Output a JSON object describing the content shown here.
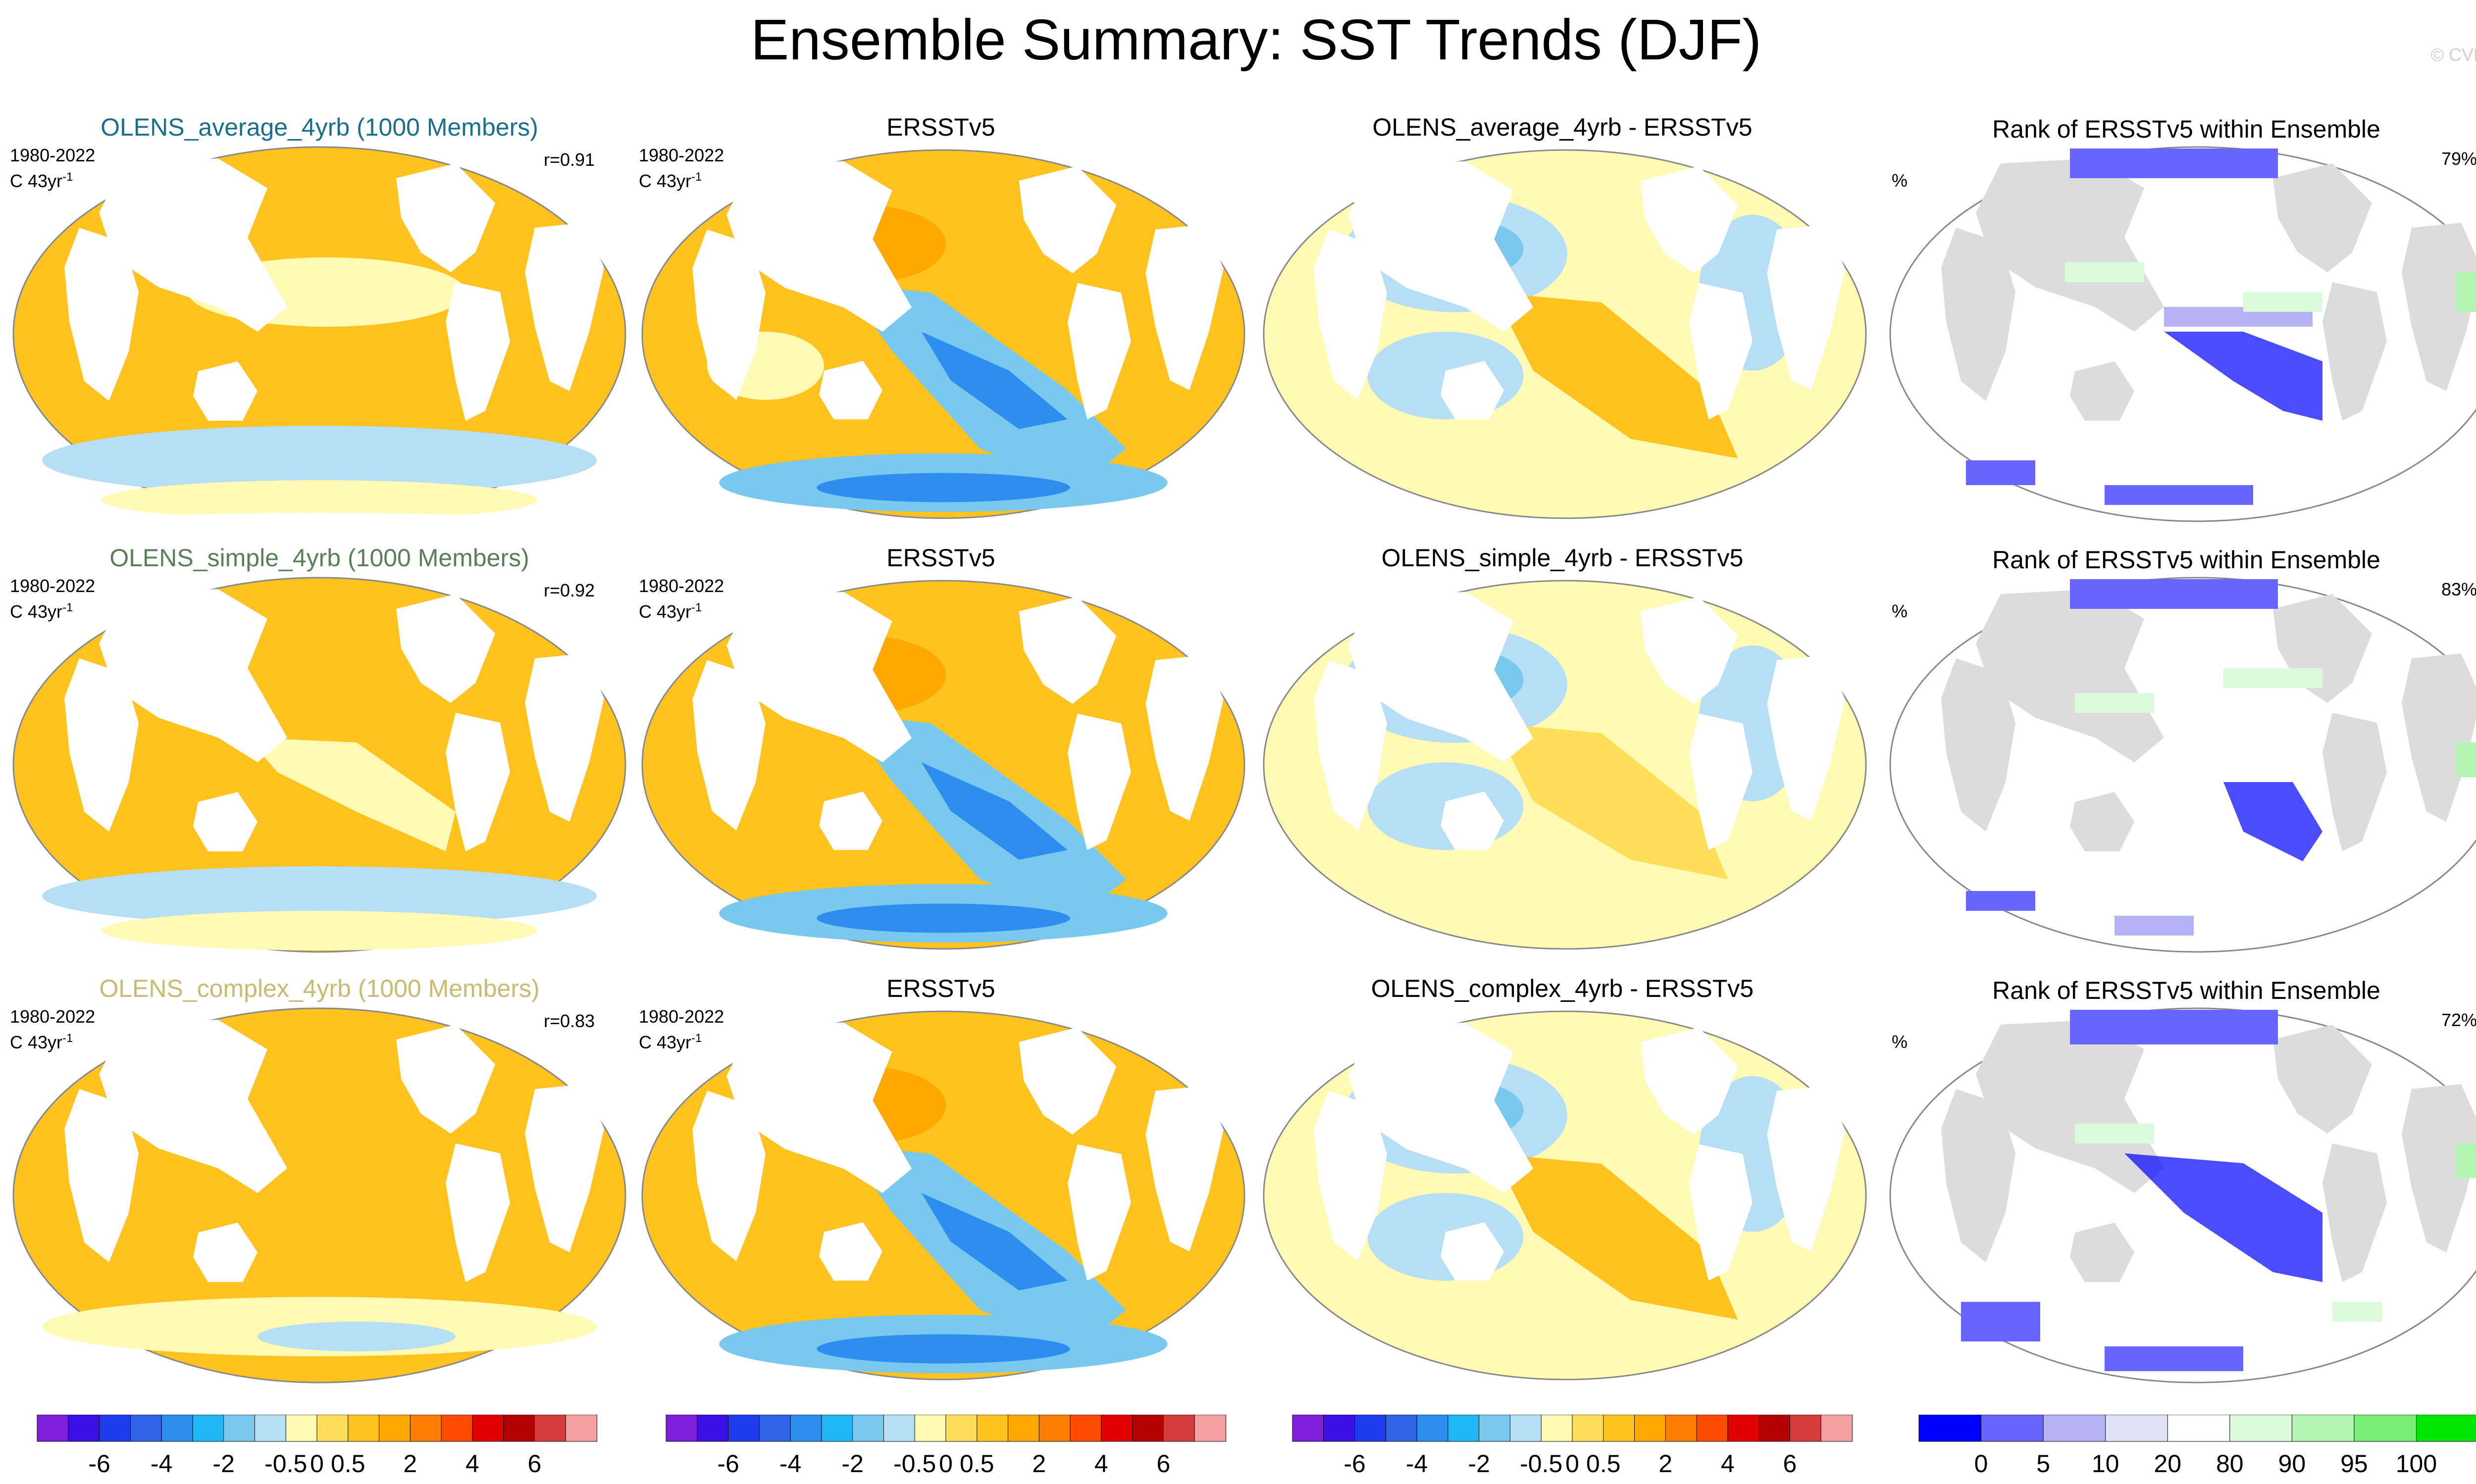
{
  "figure": {
    "title": "Ensemble Summary: SST Trends (DJF)",
    "copyright": "© CVDP"
  },
  "colors": {
    "trend_levels": [
      "#7f1fdc",
      "#3c0fe6",
      "#1e3ced",
      "#3064e8",
      "#2e8ef0",
      "#1fb6f5",
      "#79c8ee",
      "#b6def4",
      "#fffab4",
      "#ffde5a",
      "#ffc21e",
      "#ffa800",
      "#ff7d00",
      "#ff4b00",
      "#e10000",
      "#b40000",
      "#d73c3c",
      "#f5a0a0"
    ],
    "rank_levels": [
      "#0000ff",
      "#6666ff",
      "#b4b4f5",
      "#e0e0f8",
      "#ffffff",
      "#dcfadc",
      "#b4f5b4",
      "#78f078",
      "#00e600"
    ],
    "land_rank": "#dcdcdc",
    "title_model1": "#1b6f8b",
    "title_model2": "#5b7f5b",
    "title_model3": "#c8bb72"
  },
  "rows": [
    {
      "model_title": "OLENS_average_4yrb (1000 Members)",
      "period": "1980-2022",
      "units": "C 43yr",
      "units_exp": "-1",
      "corr": "r=0.91",
      "obs_title": "ERSSTv5",
      "obs_period": "1980-2022",
      "obs_units": "C 43yr",
      "obs_units_exp": "-1",
      "diff_title": "OLENS_average_4yrb - ERSSTv5",
      "rank_title": "Rank of ERSSTv5 within Ensemble",
      "rank_unit": "%",
      "rank_pct": "79%"
    },
    {
      "model_title": "OLENS_simple_4yrb (1000 Members)",
      "period": "1980-2022",
      "units": "C 43yr",
      "units_exp": "-1",
      "corr": "r=0.92",
      "obs_title": "ERSSTv5",
      "obs_period": "1980-2022",
      "obs_units": "C 43yr",
      "obs_units_exp": "-1",
      "diff_title": "OLENS_simple_4yrb - ERSSTv5",
      "rank_title": "Rank of ERSSTv5 within Ensemble",
      "rank_unit": "%",
      "rank_pct": "83%"
    },
    {
      "model_title": "OLENS_complex_4yrb (1000 Members)",
      "period": "1980-2022",
      "units": "C 43yr",
      "units_exp": "-1",
      "corr": "r=0.83",
      "obs_title": "ERSSTv5",
      "obs_period": "1980-2022",
      "obs_units": "C 43yr",
      "obs_units_exp": "-1",
      "diff_title": "OLENS_complex_4yrb - ERSSTv5",
      "rank_title": "Rank of ERSSTv5 within Ensemble",
      "rank_unit": "%",
      "rank_pct": "72%"
    }
  ],
  "chart_data": [
    {
      "type": "heatmap",
      "title": "OLENS_average_4yrb (1000 Members)",
      "variable": "SST trend",
      "units": "C 43yr-1",
      "period": "1980-2022",
      "projection": "Robinson",
      "pattern_correlation": 0.91,
      "dominant_value_range": [
        0.5,
        2
      ],
      "minimum_region": "Southern Ocean",
      "minimum_value_range": [
        -0.5,
        0
      ]
    },
    {
      "type": "heatmap",
      "title": "ERSSTv5",
      "variable": "SST trend",
      "units": "C 43yr-1",
      "period": "1980-2022",
      "projection": "Robinson",
      "dominant_value_range": [
        0.5,
        2
      ],
      "minimum_region": "Eastern tropical Pacific",
      "minimum_value_range": [
        -0.5,
        0
      ]
    },
    {
      "type": "heatmap",
      "title": "OLENS_average_4yrb - ERSSTv5",
      "variable": "SST trend difference",
      "units": "C 43yr-1",
      "projection": "Robinson"
    },
    {
      "type": "heatmap",
      "title": "Rank of ERSSTv5 within Ensemble",
      "variable": "rank",
      "units": "%",
      "percent_area_within_10_90": 79,
      "projection": "Robinson"
    },
    {
      "type": "heatmap",
      "title": "OLENS_simple_4yrb (1000 Members)",
      "variable": "SST trend",
      "units": "C 43yr-1",
      "period": "1980-2022",
      "projection": "Robinson",
      "pattern_correlation": 0.92
    },
    {
      "type": "heatmap",
      "title": "ERSSTv5",
      "variable": "SST trend",
      "units": "C 43yr-1",
      "period": "1980-2022",
      "projection": "Robinson"
    },
    {
      "type": "heatmap",
      "title": "OLENS_simple_4yrb - ERSSTv5",
      "variable": "SST trend difference",
      "units": "C 43yr-1",
      "projection": "Robinson"
    },
    {
      "type": "heatmap",
      "title": "Rank of ERSSTv5 within Ensemble",
      "variable": "rank",
      "units": "%",
      "percent_area_within_10_90": 83,
      "projection": "Robinson"
    },
    {
      "type": "heatmap",
      "title": "OLENS_complex_4yrb (1000 Members)",
      "variable": "SST trend",
      "units": "C 43yr-1",
      "period": "1980-2022",
      "projection": "Robinson",
      "pattern_correlation": 0.83
    },
    {
      "type": "heatmap",
      "title": "ERSSTv5",
      "variable": "SST trend",
      "units": "C 43yr-1",
      "period": "1980-2022",
      "projection": "Robinson"
    },
    {
      "type": "heatmap",
      "title": "OLENS_complex_4yrb - ERSSTv5",
      "variable": "SST trend difference",
      "units": "C 43yr-1",
      "projection": "Robinson"
    },
    {
      "type": "heatmap",
      "title": "Rank of ERSSTv5 within Ensemble",
      "variable": "rank",
      "units": "%",
      "percent_area_within_10_90": 72,
      "projection": "Robinson"
    }
  ],
  "colorbars": {
    "trend": {
      "tick_labels": [
        "-6",
        "-4",
        "-2",
        "-0.5",
        "0",
        "0.5",
        "2",
        "4",
        "6"
      ]
    },
    "rank": {
      "tick_labels": [
        "0",
        "5",
        "10",
        "20",
        "80",
        "90",
        "95",
        "100"
      ]
    }
  }
}
